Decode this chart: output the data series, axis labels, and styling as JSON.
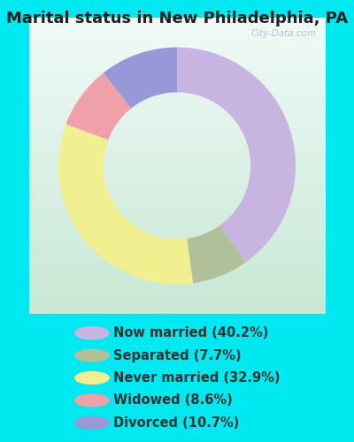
{
  "title": "Marital status in New Philadelphia, PA",
  "slices": [
    {
      "label": "Now married (40.2%)",
      "value": 40.2,
      "color": "#c8b4e0"
    },
    {
      "label": "Separated (7.7%)",
      "value": 7.7,
      "color": "#b0c098"
    },
    {
      "label": "Never married (32.9%)",
      "value": 32.9,
      "color": "#f0f090"
    },
    {
      "label": "Widowed (8.6%)",
      "value": 8.6,
      "color": "#f0a0a8"
    },
    {
      "label": "Divorced (10.7%)",
      "value": 10.7,
      "color": "#9898d8"
    }
  ],
  "outer_bg": "#00e8f0",
  "chart_bg_top": "#f0faf8",
  "chart_bg_bottom": "#c8e8d4",
  "title_fontsize": 13,
  "legend_fontsize": 10.5,
  "watermark": "City-Data.com",
  "start_angle": 90,
  "donut_width": 0.38
}
